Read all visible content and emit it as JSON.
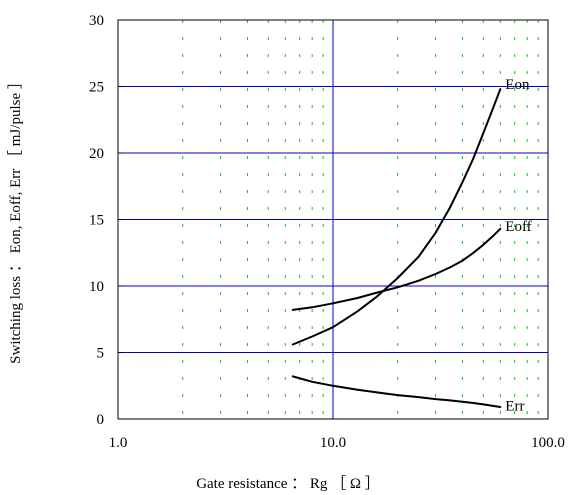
{
  "chart_data": {
    "type": "line",
    "title": "",
    "xlabel": "Gate resistance ： Rg ［ Ω ］",
    "ylabel": "Switching loss ： Eon, Eoff, Err ［ mJ/pulse ］",
    "x_scale": "log",
    "xlim": [
      1,
      100
    ],
    "ylim": [
      0,
      30
    ],
    "x_ticks": [
      1,
      10,
      100
    ],
    "x_tick_labels": [
      "1.0",
      "10.0",
      "100.0"
    ],
    "y_ticks": [
      0,
      5,
      10,
      15,
      20,
      25,
      30
    ],
    "y_tick_labels": [
      "0",
      "5",
      "10",
      "15",
      "20",
      "25",
      "30"
    ],
    "grid": {
      "major": "solid blue",
      "minor": "dashed green"
    },
    "legend": "labels at line ends",
    "colors": {
      "series": "#000000",
      "major_grid": "#0000cc",
      "minor_grid": "#00cc00",
      "frame": "#000000"
    },
    "series": [
      {
        "name": "Eon",
        "label_y": 25.2,
        "x": [
          6.5,
          8,
          10,
          13,
          16,
          20,
          25,
          30,
          35,
          40,
          45,
          50,
          55,
          60
        ],
        "y": [
          5.6,
          6.2,
          6.9,
          8.1,
          9.2,
          10.6,
          12.2,
          14.0,
          15.9,
          17.8,
          19.6,
          21.5,
          23.2,
          24.8
        ]
      },
      {
        "name": "Eoff",
        "label_y": 14.5,
        "x": [
          6.5,
          8,
          10,
          13,
          16,
          20,
          25,
          30,
          35,
          40,
          45,
          50,
          55,
          60
        ],
        "y": [
          8.2,
          8.4,
          8.7,
          9.1,
          9.5,
          9.9,
          10.4,
          10.9,
          11.4,
          11.9,
          12.5,
          13.1,
          13.7,
          14.3
        ]
      },
      {
        "name": "Err",
        "label_y": 1.0,
        "x": [
          6.5,
          8,
          10,
          13,
          16,
          20,
          25,
          30,
          35,
          40,
          45,
          50,
          55,
          60
        ],
        "y": [
          3.2,
          2.8,
          2.5,
          2.2,
          2.0,
          1.8,
          1.65,
          1.5,
          1.4,
          1.3,
          1.2,
          1.1,
          1.0,
          0.9
        ]
      }
    ]
  }
}
